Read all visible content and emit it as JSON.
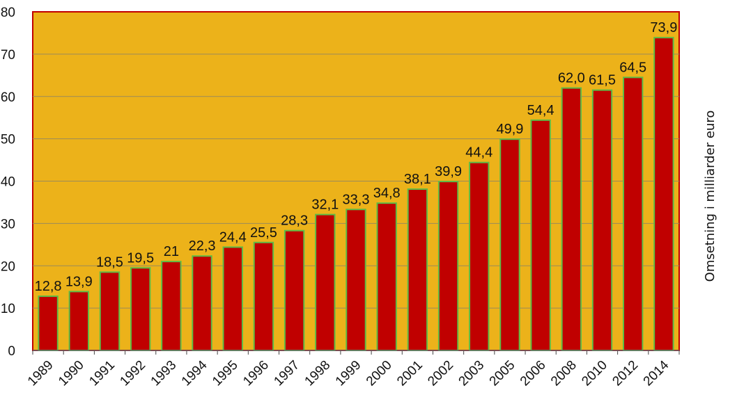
{
  "chart_data": {
    "type": "bar",
    "categories": [
      "1989",
      "1990",
      "1991",
      "1992",
      "1993",
      "1994",
      "1995",
      "1996",
      "1997",
      "1998",
      "1999",
      "2000",
      "2001",
      "2002",
      "2003",
      "2005",
      "2006",
      "2008",
      "2010",
      "2012",
      "2014"
    ],
    "values": [
      12.8,
      13.9,
      18.5,
      19.5,
      21,
      22.3,
      24.4,
      25.5,
      28.3,
      32.1,
      33.3,
      34.8,
      38.1,
      39.9,
      44.4,
      49.9,
      54.4,
      62.0,
      61.5,
      64.5,
      73.9
    ],
    "data_labels": [
      "12,8",
      "13,9",
      "18,5",
      "19,5",
      "21",
      "22,3",
      "24,4",
      "25,5",
      "28,3",
      "32,1",
      "33,3",
      "34,8",
      "38,1",
      "39,9",
      "44,4",
      "49,9",
      "54,4",
      "62,0",
      "61,5",
      "64,5",
      "73,9"
    ],
    "y_ticks": [
      "0",
      "10",
      "20",
      "30",
      "40",
      "50",
      "60",
      "70",
      "80"
    ],
    "title": "",
    "xlabel": "",
    "ylabel": "Omsetning i milliarder euro",
    "ylim": [
      0,
      80
    ],
    "grid": true,
    "colors": {
      "plot_background": "#ECB21A",
      "bar_fill": "#C00000",
      "bar_outline": "#5DBB46",
      "border": "#C00000",
      "gridline": "#9A8A5A"
    }
  }
}
